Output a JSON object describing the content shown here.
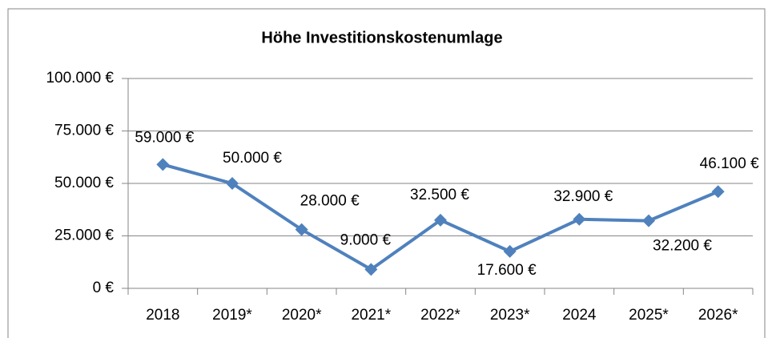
{
  "chart_data": {
    "type": "line",
    "title": "Höhe Investitionskostenumlage",
    "categories": [
      "2018",
      "2019*",
      "2020*",
      "2021*",
      "2022*",
      "2023*",
      "2024",
      "2025*",
      "2026*"
    ],
    "series": [
      {
        "color": "#4f81bd",
        "values": [
          59000,
          50000,
          28000,
          9000,
          32500,
          17600,
          32900,
          32200,
          46100
        ],
        "value_labels": [
          "59.000 €",
          "50.000 €",
          "28.000 €",
          "9.000 €",
          "32.500 €",
          "17.600 €",
          "32.900 €",
          "32.200 €",
          "46.100 €"
        ]
      }
    ],
    "ylim": [
      0,
      100000
    ],
    "yticks": [
      {
        "value": 0,
        "label": "0 €"
      },
      {
        "value": 25000,
        "label": "25.000 €"
      },
      {
        "value": 50000,
        "label": "50.000 €"
      },
      {
        "value": 75000,
        "label": "75.000 €"
      },
      {
        "value": 100000,
        "label": "100.000 €"
      }
    ],
    "grid": true
  }
}
